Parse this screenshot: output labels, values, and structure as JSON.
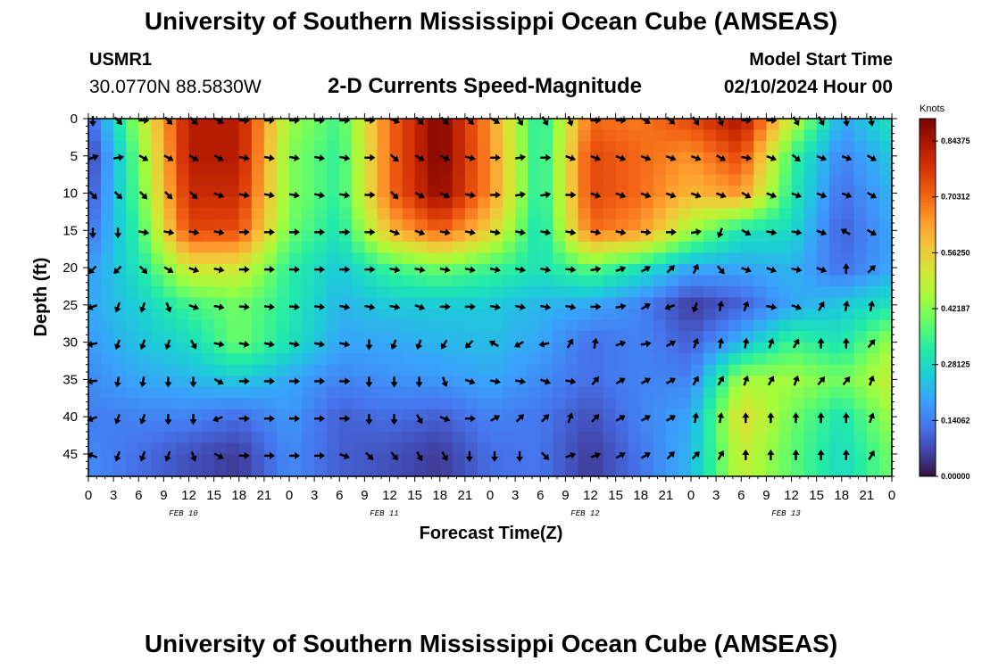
{
  "header": {
    "title": "University of Southern Mississippi Ocean Cube (AMSEAS)",
    "station": "USMR1",
    "coordinates": "30.0770N  88.5830W",
    "subtitle": "2-D Currents Speed-Magnitude",
    "model_label": "Model Start Time",
    "model_value": "02/10/2024 Hour 00"
  },
  "footer": {
    "title": "University of Southern Mississippi Ocean Cube (AMSEAS)"
  },
  "chart_data": {
    "type": "heatmap",
    "title": "2-D Currents Speed-Magnitude",
    "xlabel": "Forecast Time(Z)",
    "ylabel": "Depth (ft)",
    "xlim": [
      0,
      96
    ],
    "ylim": [
      48,
      0
    ],
    "x_ticks": [
      0,
      3,
      6,
      9,
      12,
      15,
      18,
      21,
      24,
      27,
      30,
      33,
      36,
      39,
      42,
      45,
      48,
      51,
      54,
      57,
      60,
      63,
      66,
      69,
      72,
      75,
      78,
      81,
      84,
      87,
      90,
      93,
      96
    ],
    "x_tick_labels": [
      "0",
      "3",
      "6",
      "9",
      "12",
      "15",
      "18",
      "21",
      "0",
      "3",
      "6",
      "9",
      "12",
      "15",
      "18",
      "21",
      "0",
      "3",
      "6",
      "9",
      "12",
      "15",
      "18",
      "21",
      "0",
      "3",
      "6",
      "9",
      "12",
      "15",
      "18",
      "21",
      "0"
    ],
    "y_ticks": [
      0,
      5,
      10,
      15,
      20,
      25,
      30,
      35,
      40,
      45
    ],
    "y_tick_labels": [
      "0",
      "5",
      "10",
      "15",
      "20",
      "25",
      "30",
      "35",
      "40",
      "45"
    ],
    "date_labels": [
      {
        "hour": 12,
        "label": "FEB 10"
      },
      {
        "hour": 36,
        "label": "FEB 11"
      },
      {
        "hour": 60,
        "label": "FEB 12"
      },
      {
        "hour": 84,
        "label": "FEB 13"
      }
    ],
    "colorbar": {
      "label": "Knots",
      "min": 0.0,
      "max": 0.9,
      "ticks": [
        0.0,
        0.140625,
        0.28125,
        0.421875,
        0.5625,
        0.703125,
        0.84375
      ],
      "tick_labels": [
        "0.00000",
        "0.14062",
        "0.28125",
        "0.42187",
        "0.56250",
        "0.70312",
        "0.84375"
      ],
      "colormap": [
        "#30123b",
        "#4145ab",
        "#4675ed",
        "#39a2fc",
        "#1bcfd4",
        "#24eca6",
        "#61fc6c",
        "#a4fc3b",
        "#d1e834",
        "#f3c63a",
        "#fe9b2d",
        "#f36315",
        "#d93806",
        "#b11901",
        "#7a0402"
      ]
    },
    "arrow_hours": [
      0,
      3,
      6,
      9,
      12,
      15,
      18,
      21,
      24,
      27,
      30,
      33,
      36,
      39,
      42,
      45,
      48,
      51,
      54,
      57,
      60,
      63,
      66,
      69,
      72,
      75,
      78,
      81,
      84,
      87,
      90,
      93
    ],
    "arrow_depths": [
      0,
      5,
      10,
      15,
      20,
      25,
      30,
      35,
      40,
      45
    ],
    "arrow_directions_deg": [
      [
        180,
        135,
        90,
        135,
        135,
        120,
        90,
        90,
        90,
        90,
        90,
        90,
        110,
        135,
        135,
        135,
        120,
        150,
        150,
        160,
        90,
        90,
        120,
        130,
        145,
        160,
        90,
        90,
        150,
        150,
        170,
        170
      ],
      [
        70,
        80,
        120,
        120,
        120,
        120,
        100,
        100,
        100,
        100,
        100,
        90,
        130,
        120,
        115,
        105,
        90,
        80,
        90,
        110,
        110,
        110,
        110,
        110,
        110,
        120,
        100,
        110,
        130,
        110,
        110,
        120
      ],
      [
        135,
        135,
        135,
        135,
        135,
        110,
        100,
        100,
        100,
        100,
        100,
        90,
        135,
        120,
        115,
        100,
        90,
        80,
        80,
        90,
        110,
        110,
        110,
        110,
        110,
        110,
        120,
        110,
        110,
        110,
        110,
        120
      ],
      [
        180,
        180,
        100,
        100,
        100,
        100,
        90,
        90,
        90,
        90,
        90,
        90,
        110,
        110,
        100,
        100,
        100,
        100,
        100,
        100,
        100,
        100,
        95,
        90,
        80,
        200,
        120,
        100,
        100,
        110,
        300,
        120
      ],
      [
        225,
        225,
        135,
        120,
        110,
        100,
        90,
        90,
        90,
        90,
        90,
        90,
        100,
        100,
        100,
        100,
        100,
        100,
        100,
        95,
        80,
        70,
        60,
        45,
        25,
        140,
        110,
        110,
        100,
        110,
        0,
        45
      ],
      [
        250,
        200,
        200,
        160,
        110,
        100,
        95,
        95,
        95,
        95,
        100,
        100,
        100,
        110,
        90,
        90,
        100,
        100,
        100,
        100,
        90,
        80,
        60,
        250,
        200,
        10,
        20,
        100,
        110,
        30,
        10,
        10
      ],
      [
        260,
        200,
        200,
        200,
        150,
        100,
        100,
        100,
        100,
        100,
        100,
        180,
        200,
        200,
        210,
        225,
        300,
        240,
        260,
        30,
        10,
        70,
        80,
        60,
        20,
        10,
        10,
        20,
        30,
        0,
        0,
        40
      ],
      [
        260,
        190,
        190,
        180,
        180,
        120,
        90,
        90,
        90,
        90,
        90,
        180,
        180,
        180,
        160,
        110,
        100,
        100,
        110,
        100,
        40,
        60,
        60,
        60,
        30,
        30,
        20,
        30,
        20,
        40,
        40,
        20
      ],
      [
        250,
        200,
        200,
        180,
        180,
        250,
        90,
        90,
        90,
        90,
        90,
        180,
        180,
        150,
        110,
        90,
        60,
        45,
        45,
        20,
        45,
        60,
        60,
        60,
        10,
        10,
        0,
        0,
        0,
        0,
        0,
        20
      ],
      [
        290,
        200,
        200,
        200,
        160,
        120,
        90,
        90,
        90,
        90,
        110,
        135,
        140,
        150,
        150,
        180,
        180,
        180,
        135,
        70,
        70,
        60,
        60,
        45,
        45,
        30,
        0,
        0,
        0,
        0,
        0,
        30
      ]
    ],
    "speed_knots_approx": {
      "note": "Approximate speed field read from color shading, depths 0-45 ft every 5 ft",
      "hours": [
        0,
        6,
        12,
        18,
        24,
        30,
        36,
        42,
        48,
        54,
        60,
        66,
        72,
        78,
        84,
        90,
        96
      ],
      "depths": [
        0,
        5,
        10,
        15,
        20,
        25,
        30,
        35,
        40,
        45
      ],
      "values": [
        [
          0.1,
          0.45,
          0.83,
          0.83,
          0.45,
          0.35,
          0.7,
          0.9,
          0.65,
          0.3,
          0.7,
          0.68,
          0.75,
          0.85,
          0.5,
          0.2,
          0.3
        ],
        [
          0.05,
          0.4,
          0.83,
          0.83,
          0.42,
          0.33,
          0.7,
          0.9,
          0.66,
          0.3,
          0.75,
          0.7,
          0.65,
          0.75,
          0.35,
          0.15,
          0.25
        ],
        [
          0.08,
          0.38,
          0.8,
          0.8,
          0.42,
          0.33,
          0.7,
          0.88,
          0.66,
          0.3,
          0.75,
          0.7,
          0.6,
          0.65,
          0.32,
          0.12,
          0.22
        ],
        [
          0.12,
          0.34,
          0.75,
          0.74,
          0.4,
          0.3,
          0.6,
          0.72,
          0.56,
          0.28,
          0.7,
          0.65,
          0.45,
          0.3,
          0.28,
          0.1,
          0.2
        ],
        [
          0.18,
          0.3,
          0.52,
          0.52,
          0.33,
          0.25,
          0.35,
          0.4,
          0.35,
          0.3,
          0.38,
          0.3,
          0.2,
          0.2,
          0.22,
          0.12,
          0.2
        ],
        [
          0.2,
          0.26,
          0.35,
          0.4,
          0.32,
          0.22,
          0.25,
          0.25,
          0.25,
          0.22,
          0.2,
          0.15,
          0.05,
          0.1,
          0.2,
          0.25,
          0.3
        ],
        [
          0.18,
          0.24,
          0.28,
          0.4,
          0.3,
          0.2,
          0.2,
          0.22,
          0.23,
          0.2,
          0.12,
          0.15,
          0.1,
          0.22,
          0.35,
          0.3,
          0.45
        ],
        [
          0.16,
          0.2,
          0.22,
          0.25,
          0.2,
          0.15,
          0.17,
          0.18,
          0.2,
          0.16,
          0.12,
          0.15,
          0.15,
          0.45,
          0.45,
          0.4,
          0.5
        ],
        [
          0.14,
          0.15,
          0.15,
          0.12,
          0.18,
          0.1,
          0.12,
          0.1,
          0.15,
          0.13,
          0.08,
          0.15,
          0.2,
          0.55,
          0.4,
          0.3,
          0.45
        ],
        [
          0.16,
          0.12,
          0.08,
          0.05,
          0.16,
          0.1,
          0.08,
          0.05,
          0.12,
          0.13,
          0.05,
          0.13,
          0.22,
          0.5,
          0.38,
          0.28,
          0.4
        ]
      ]
    }
  }
}
